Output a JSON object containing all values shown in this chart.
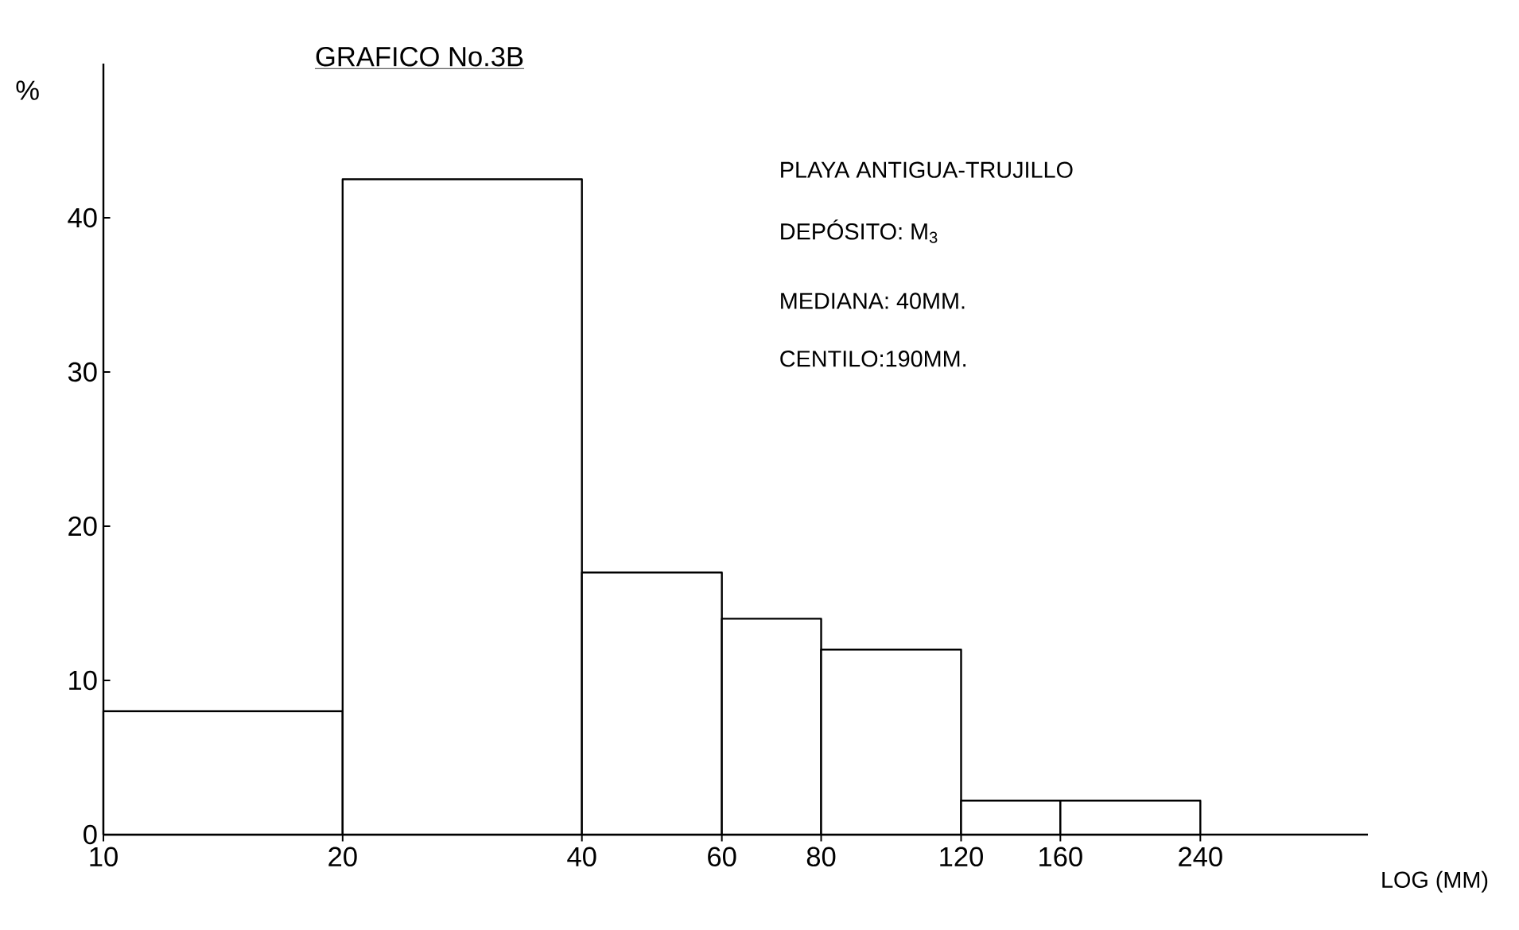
{
  "chart_data": {
    "type": "histogram",
    "title": "GRAFICO No.3B",
    "xlabel": "LOG (MM)",
    "ylabel": "%",
    "bins": [
      10,
      20,
      40,
      60,
      80,
      120,
      160,
      240
    ],
    "values": [
      8,
      42.5,
      17,
      14,
      12,
      2.2,
      2.2
    ],
    "color": "#000000",
    "log": "x",
    "xlim": [
      10,
      390
    ],
    "xticks": [
      10,
      20,
      40,
      60,
      80,
      120,
      160,
      240
    ],
    "ylim": [
      0,
      50
    ],
    "yticks": [
      0,
      10,
      20,
      30,
      40
    ],
    "annotations": [
      "PLAYA ANTIGUA-TRUJILLO",
      "DEPÓSITO: M$_{3}$",
      "MEDIANA: 40MM.",
      "CENTILO:190MM."
    ]
  }
}
